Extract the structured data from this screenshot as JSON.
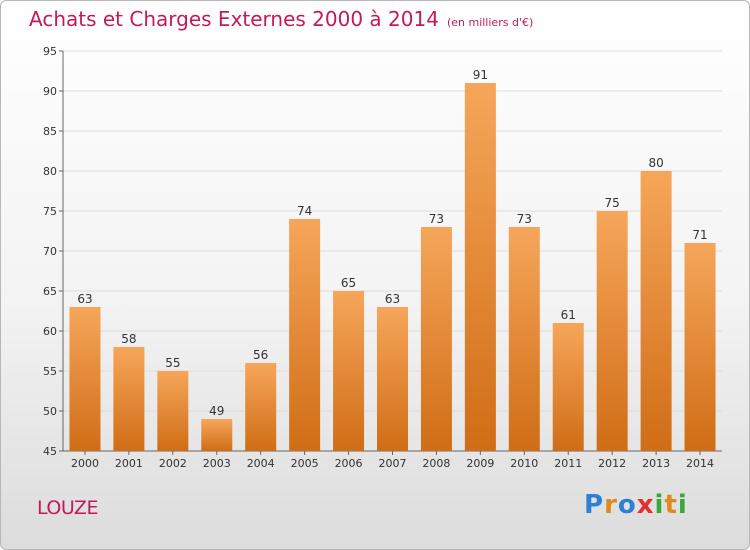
{
  "header": {
    "title": "Achats et Charges Externes 2000 à 2014",
    "subtitle": "(en milliers d'€)"
  },
  "commune": "LOUZE",
  "logo": {
    "text": "Proxiti",
    "letters": [
      "P",
      "r",
      "o",
      "x",
      "i",
      "t",
      "i"
    ],
    "colors": [
      "#2f7fd6",
      "#e08a1e",
      "#2f7fd6",
      "#e03030",
      "#39a839",
      "#e08a1e",
      "#39a839"
    ]
  },
  "colors": {
    "bar_light": "#f6a65a",
    "bar_dark": "#d06d16",
    "title": "#c21a5c",
    "grid": "#dddddd"
  },
  "chart_data": {
    "type": "bar",
    "categories": [
      "2000",
      "2001",
      "2002",
      "2003",
      "2004",
      "2005",
      "2006",
      "2007",
      "2008",
      "2009",
      "2010",
      "2011",
      "2012",
      "2013",
      "2014"
    ],
    "values": [
      63,
      58,
      55,
      49,
      56,
      74,
      65,
      63,
      73,
      91,
      73,
      61,
      75,
      80,
      71
    ],
    "ylim": [
      45,
      95
    ],
    "yticks": [
      45,
      50,
      55,
      60,
      65,
      70,
      75,
      80,
      85,
      90,
      95
    ],
    "grid": true,
    "data_labels": true
  }
}
